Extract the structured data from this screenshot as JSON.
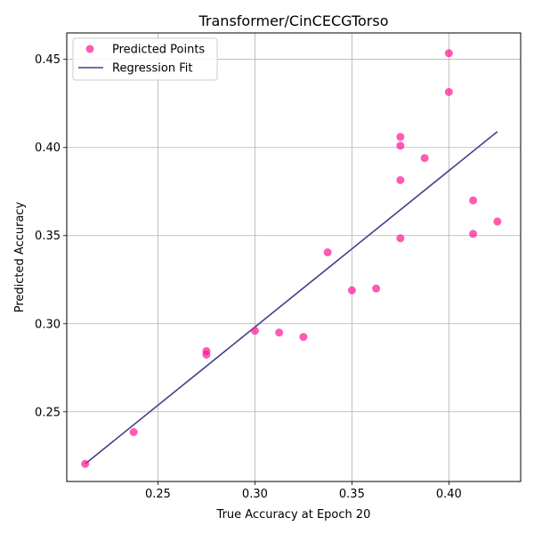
{
  "chart_data": {
    "type": "scatter",
    "title": "Transformer/CinCECGTorso",
    "xlabel": "True Accuracy at Epoch 20",
    "ylabel": "Predicted Accuracy",
    "xlim": [
      0.203,
      0.437
    ],
    "ylim": [
      0.2105,
      0.465
    ],
    "xticks": [
      0.25,
      0.3,
      0.35,
      0.4
    ],
    "xtick_labels": [
      "0.25",
      "0.30",
      "0.35",
      "0.40"
    ],
    "yticks": [
      0.25,
      0.3,
      0.35,
      0.4,
      0.45
    ],
    "ytick_labels": [
      "0.25",
      "0.30",
      "0.35",
      "0.40",
      "0.45"
    ],
    "grid": true,
    "legend_position": "top-left",
    "series": [
      {
        "name": "Predicted Points",
        "kind": "scatter",
        "color": "#ff1493",
        "points": [
          {
            "x": 0.2125,
            "y": 0.2205
          },
          {
            "x": 0.2375,
            "y": 0.2385
          },
          {
            "x": 0.275,
            "y": 0.2845
          },
          {
            "x": 0.275,
            "y": 0.2825
          },
          {
            "x": 0.3,
            "y": 0.296
          },
          {
            "x": 0.3125,
            "y": 0.295
          },
          {
            "x": 0.325,
            "y": 0.2925
          },
          {
            "x": 0.3375,
            "y": 0.3405
          },
          {
            "x": 0.35,
            "y": 0.319
          },
          {
            "x": 0.3625,
            "y": 0.32
          },
          {
            "x": 0.375,
            "y": 0.406
          },
          {
            "x": 0.375,
            "y": 0.401
          },
          {
            "x": 0.375,
            "y": 0.3815
          },
          {
            "x": 0.375,
            "y": 0.3485
          },
          {
            "x": 0.3875,
            "y": 0.394
          },
          {
            "x": 0.4,
            "y": 0.4535
          },
          {
            "x": 0.4,
            "y": 0.4315
          },
          {
            "x": 0.4125,
            "y": 0.37
          },
          {
            "x": 0.4125,
            "y": 0.351
          },
          {
            "x": 0.425,
            "y": 0.358
          }
        ]
      },
      {
        "name": "Regression Fit",
        "kind": "line",
        "color": "#483d8b",
        "x": [
          0.2125,
          0.425
        ],
        "y": [
          0.2205,
          0.409
        ]
      }
    ]
  }
}
